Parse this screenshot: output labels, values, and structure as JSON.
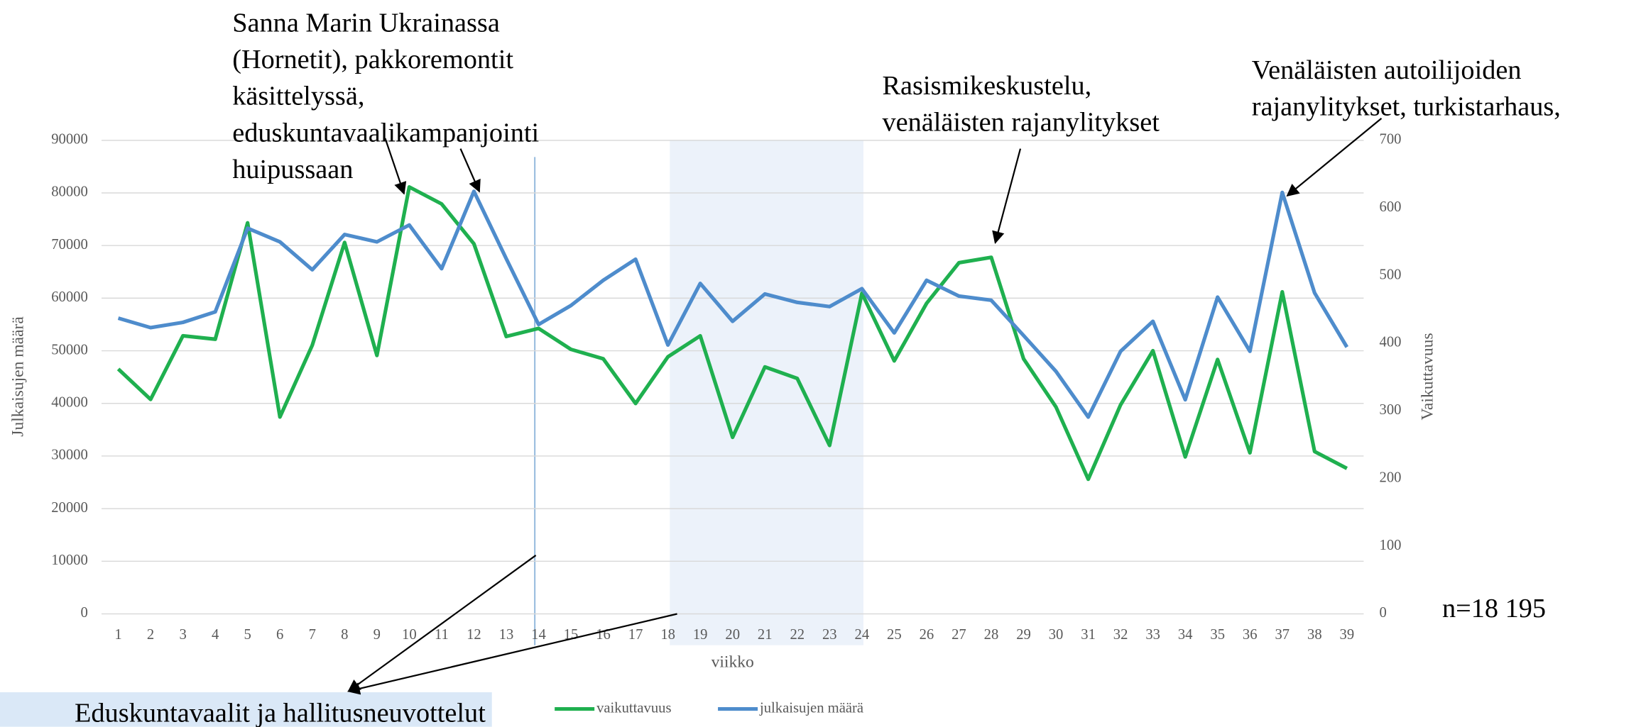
{
  "chart_data": {
    "type": "line",
    "categories": [
      "1",
      "2",
      "3",
      "4",
      "5",
      "6",
      "7",
      "8",
      "9",
      "10",
      "11",
      "12",
      "13",
      "14",
      "15",
      "16",
      "17",
      "18",
      "19",
      "20",
      "21",
      "22",
      "23",
      "24",
      "25",
      "26",
      "27",
      "28",
      "29",
      "30",
      "31",
      "32",
      "33",
      "34",
      "35",
      "36",
      "37",
      "38",
      "39"
    ],
    "x_label": "viikko",
    "y_label": "Julkaisujen määrä",
    "y2_label": "Vaikuttavuus",
    "ylim": [
      0,
      90000
    ],
    "yticks": [
      0,
      10000,
      20000,
      30000,
      40000,
      50000,
      60000,
      70000,
      80000,
      90000
    ],
    "y2lim": [
      0,
      700
    ],
    "y2ticks": [
      0,
      100,
      200,
      300,
      400,
      500,
      600,
      700
    ],
    "grid": true,
    "legend": "bottom",
    "series": [
      {
        "name": "vaikuttavuus",
        "color": "#1fb04f",
        "axis": "y2",
        "values": [
          362,
          317,
          411,
          406,
          578,
          291,
          397,
          549,
          382,
          631,
          606,
          547,
          410,
          422,
          391,
          377,
          311,
          380,
          411,
          261,
          365,
          348,
          249,
          474,
          374,
          459,
          519,
          527,
          377,
          306,
          199,
          309,
          389,
          232,
          376,
          238,
          476,
          240,
          215
        ]
      },
      {
        "name": "julkaisujen määrä",
        "color": "#4e8ccc",
        "values": [
          56200,
          54400,
          55400,
          57400,
          73300,
          70700,
          65400,
          72100,
          70700,
          73900,
          65600,
          80300,
          67500,
          55000,
          58600,
          63400,
          67400,
          51100,
          62800,
          55600,
          60800,
          59200,
          58400,
          61800,
          53400,
          63400,
          60400,
          59600,
          52900,
          46100,
          37400,
          49900,
          55600,
          40700,
          60200,
          49900,
          80100,
          61000,
          50700
        ]
      }
    ],
    "annotations": [
      {
        "lines": [
          "Sanna Marin Ukrainassa",
          "(Hornetit), pakkoremontit",
          "käsittelyssä,",
          "eduskuntavaalikampanjointi",
          "huipussaan"
        ]
      },
      {
        "lines": [
          "Rasismikeskustelu,",
          "venäläisten rajanylitykset"
        ]
      },
      {
        "lines": [
          "Venäläisten autoilijoiden",
          "rajanylitykset, turkistarhaus,"
        ]
      },
      {
        "lines": [
          "Eduskuntavaalit ja hallitusneuvottelut"
        ]
      }
    ],
    "note": "n=18 195"
  }
}
